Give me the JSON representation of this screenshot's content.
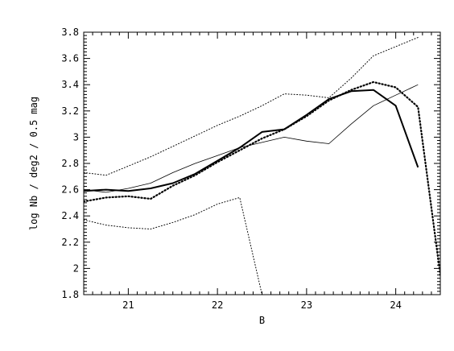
{
  "chart_data": {
    "type": "line",
    "xlabel": "B",
    "ylabel": "log Nb / deg2 / 0.5 mag",
    "xlim": [
      20.5,
      24.5
    ],
    "ylim": [
      1.8,
      3.8
    ],
    "xticks": [
      21,
      22,
      23,
      24
    ],
    "xtick_labels": [
      "21",
      "22",
      "23",
      "24"
    ],
    "yticks": [
      1.8,
      2.0,
      2.2,
      2.4,
      2.6,
      2.8,
      3.0,
      3.2,
      3.4,
      3.6,
      3.8
    ],
    "ytick_labels": [
      "1.8",
      "2",
      "2.2",
      "2.4",
      "2.6",
      "2.8",
      "3",
      "3.2",
      "3.4",
      "3.6",
      "3.8"
    ],
    "grid": false,
    "series": [
      {
        "style": "thick-solid",
        "color": "#000000",
        "x": [
          20.5,
          20.75,
          21.0,
          21.25,
          21.5,
          21.75,
          22.0,
          22.25,
          22.5,
          22.75,
          23.0,
          23.25,
          23.5,
          23.75,
          24.0,
          24.25
        ],
        "y": [
          2.59,
          2.6,
          2.59,
          2.61,
          2.65,
          2.72,
          2.82,
          2.92,
          3.04,
          3.06,
          3.17,
          3.29,
          3.35,
          3.36,
          3.24,
          2.77
        ]
      },
      {
        "style": "thin-solid",
        "color": "#000000",
        "x": [
          20.5,
          20.75,
          21.0,
          21.25,
          21.5,
          21.75,
          22.0,
          22.25,
          22.5,
          22.75,
          23.0,
          23.25,
          23.5,
          23.75,
          24.0,
          24.25
        ],
        "y": [
          2.6,
          2.58,
          2.61,
          2.65,
          2.73,
          2.8,
          2.86,
          2.92,
          2.96,
          3.0,
          2.97,
          2.95,
          3.1,
          3.24,
          3.32,
          3.4
        ]
      },
      {
        "style": "thick-dotted",
        "color": "#000000",
        "x": [
          20.5,
          20.75,
          21.0,
          21.25,
          21.5,
          21.75,
          22.0,
          22.25,
          22.5,
          22.75,
          23.0,
          23.25,
          23.5,
          23.75,
          24.0,
          24.25,
          24.5
        ],
        "y": [
          2.51,
          2.54,
          2.55,
          2.53,
          2.63,
          2.71,
          2.81,
          2.9,
          2.99,
          3.06,
          3.16,
          3.28,
          3.36,
          3.42,
          3.38,
          3.23,
          1.95
        ]
      },
      {
        "style": "thin-dotted",
        "color": "#000000",
        "x": [
          20.5,
          20.75,
          21.0,
          21.25,
          21.5,
          21.75,
          22.0,
          22.25,
          22.5,
          22.75,
          23.0,
          23.25,
          23.5,
          23.75,
          24.0,
          24.25
        ],
        "y": [
          2.73,
          2.71,
          2.78,
          2.85,
          2.93,
          3.01,
          3.09,
          3.16,
          3.24,
          3.33,
          3.32,
          3.3,
          3.45,
          3.62,
          3.69,
          3.76
        ]
      },
      {
        "style": "thin-dotted",
        "color": "#000000",
        "x": [
          20.5,
          20.75,
          21.0,
          21.25,
          21.5,
          21.75,
          22.0,
          22.25,
          22.5
        ],
        "y": [
          2.37,
          2.33,
          2.31,
          2.3,
          2.35,
          2.41,
          2.49,
          2.54,
          1.8
        ]
      }
    ]
  }
}
